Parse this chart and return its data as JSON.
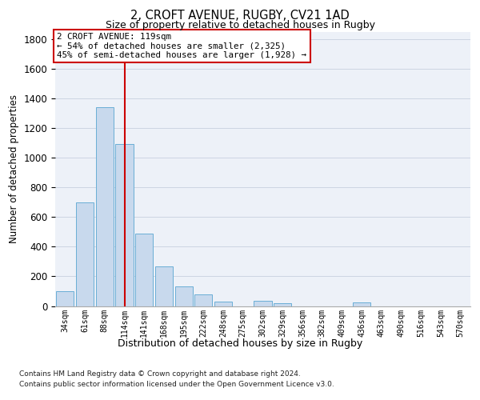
{
  "title_line1": "2, CROFT AVENUE, RUGBY, CV21 1AD",
  "title_line2": "Size of property relative to detached houses in Rugby",
  "xlabel": "Distribution of detached houses by size in Rugby",
  "ylabel": "Number of detached properties",
  "categories": [
    "34sqm",
    "61sqm",
    "88sqm",
    "114sqm",
    "141sqm",
    "168sqm",
    "195sqm",
    "222sqm",
    "248sqm",
    "275sqm",
    "302sqm",
    "329sqm",
    "356sqm",
    "382sqm",
    "409sqm",
    "436sqm",
    "463sqm",
    "490sqm",
    "516sqm",
    "543sqm",
    "570sqm"
  ],
  "values": [
    100,
    700,
    1340,
    1095,
    490,
    270,
    135,
    80,
    30,
    0,
    35,
    20,
    0,
    0,
    0,
    25,
    0,
    0,
    0,
    0,
    0
  ],
  "bar_color": "#c8d9ed",
  "bar_edge_color": "#6aaed6",
  "grid_color": "#cdd5e3",
  "vline_bar_index": 3,
  "vline_color": "#cc0000",
  "annotation_line1": "2 CROFT AVENUE: 119sqm",
  "annotation_line2": "← 54% of detached houses are smaller (2,325)",
  "annotation_line3": "45% of semi-detached houses are larger (1,928) →",
  "annotation_box_color": "#ffffff",
  "annotation_box_edge": "#cc0000",
  "ylim": [
    0,
    1850
  ],
  "yticks": [
    0,
    200,
    400,
    600,
    800,
    1000,
    1200,
    1400,
    1600,
    1800
  ],
  "background_color": "#edf1f8",
  "footer_line1": "Contains HM Land Registry data © Crown copyright and database right 2024.",
  "footer_line2": "Contains public sector information licensed under the Open Government Licence v3.0."
}
